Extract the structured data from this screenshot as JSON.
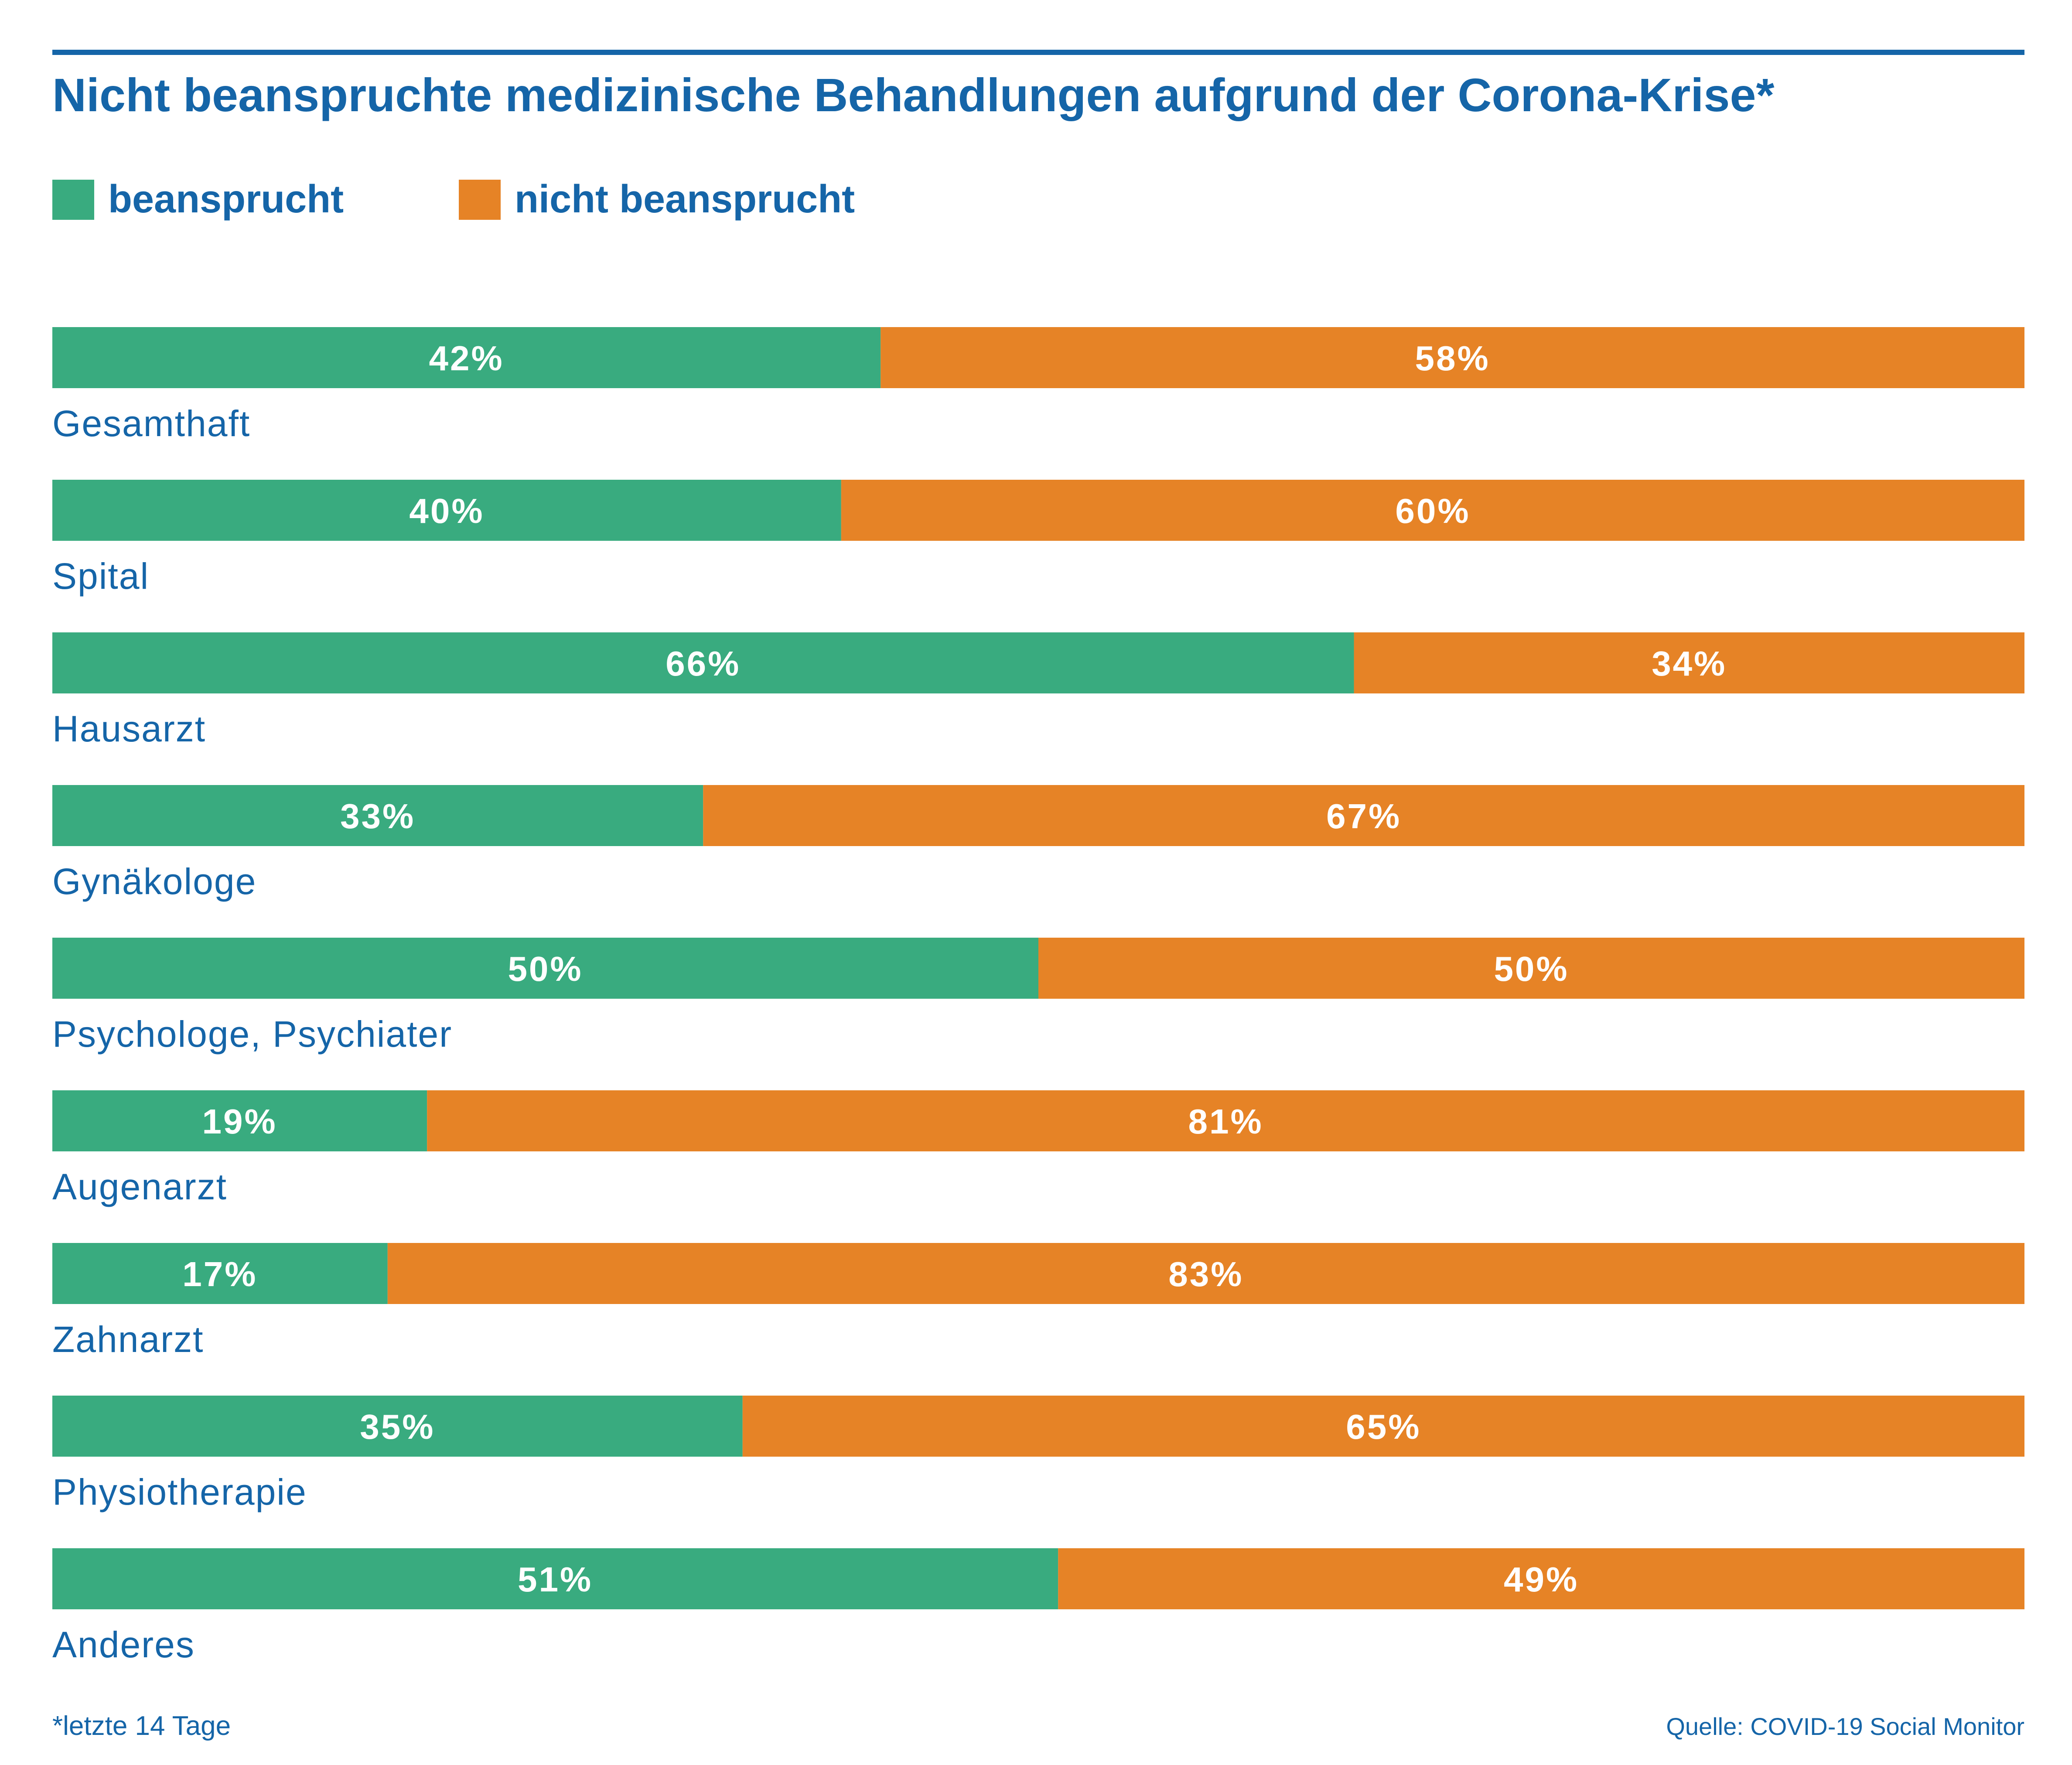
{
  "colors": {
    "accent_blue": "#1565a8",
    "beansprucht": "#39ab7f",
    "nicht_beansprucht": "#e68326",
    "value_label": "#ffffff",
    "background": "#ffffff"
  },
  "chart_data": {
    "type": "bar",
    "orientation": "horizontal",
    "stacked": true,
    "normalized_percent": true,
    "title": "Nicht beanspruchte medizinische Behandlungen aufgrund der Corona-Krise*",
    "categories": [
      "Gesamthaft",
      "Spital",
      "Hausarzt",
      "Gynäkologe",
      "Psychologe, Psychiater",
      "Augenarzt",
      "Zahnarzt",
      "Physiotherapie",
      "Anderes"
    ],
    "series": [
      {
        "name": "beansprucht",
        "color": "#39ab7f",
        "values": [
          42,
          40,
          66,
          33,
          50,
          19,
          17,
          35,
          51
        ]
      },
      {
        "name": "nicht beansprucht",
        "color": "#e68326",
        "values": [
          58,
          60,
          34,
          67,
          50,
          81,
          83,
          65,
          49
        ]
      }
    ],
    "value_labels": [
      [
        "42%",
        "58%"
      ],
      [
        "40%",
        "60%"
      ],
      [
        "66%",
        "34%"
      ],
      [
        "33%",
        "67%"
      ],
      [
        "50%",
        "50%"
      ],
      [
        "19%",
        "81%"
      ],
      [
        "17%",
        "83%"
      ],
      [
        "35%",
        "65%"
      ],
      [
        "51%",
        "49%"
      ]
    ],
    "xlim": [
      0,
      100
    ],
    "grid": false,
    "legend_position": "top-left",
    "footnote": "*letzte 14 Tage",
    "source": "Quelle: COVID-19 Social Monitor"
  }
}
